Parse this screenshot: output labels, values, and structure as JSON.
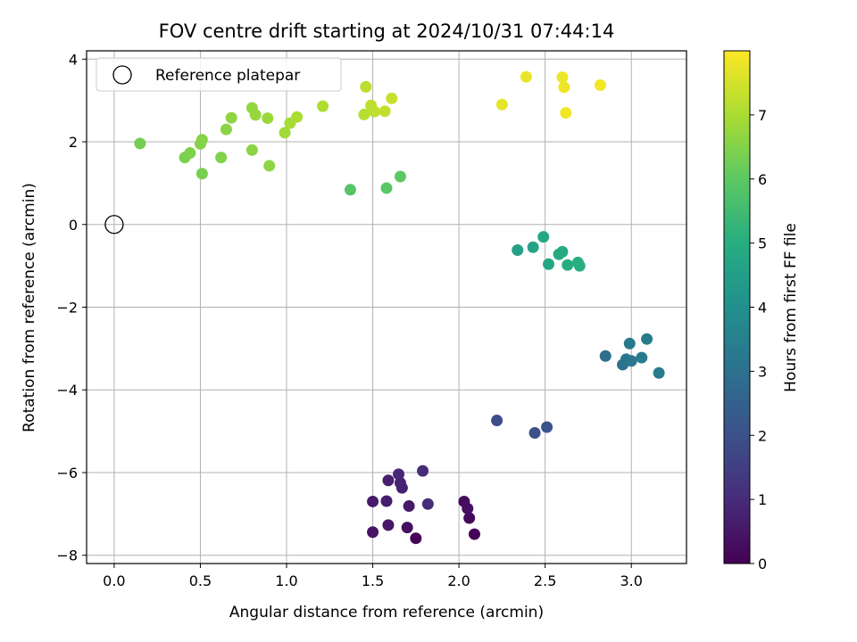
{
  "chart_data": {
    "type": "scatter",
    "title": "FOV centre drift starting at 2024/10/31 07:44:14",
    "xlabel": "Angular distance from reference (arcmin)",
    "ylabel": "Rotation from reference (arcmin)",
    "xlim": [
      -0.16,
      3.32
    ],
    "ylim": [
      -8.2,
      4.2
    ],
    "xticks": [
      0.0,
      0.5,
      1.0,
      1.5,
      2.0,
      2.5,
      3.0
    ],
    "xtick_labels": [
      "0.0",
      "0.5",
      "1.0",
      "1.5",
      "2.0",
      "2.5",
      "3.0"
    ],
    "yticks": [
      -8,
      -6,
      -4,
      -2,
      0,
      2,
      4
    ],
    "ytick_labels": [
      "−8",
      "−6",
      "−4",
      "−2",
      "0",
      "2",
      "4"
    ],
    "grid": true,
    "legend": {
      "placement": "top-left",
      "entries": [
        "Reference platepar"
      ]
    },
    "reference_point": {
      "x": 0.0,
      "y": 0.0,
      "label": "Reference platepar"
    },
    "colorbar": {
      "label": "Hours from first FF file",
      "colormap": "viridis",
      "range": [
        0,
        8.0
      ],
      "ticks": [
        0,
        1,
        2,
        3,
        4,
        5,
        6,
        7
      ],
      "tick_labels": [
        "0",
        "1",
        "2",
        "3",
        "4",
        "5",
        "6",
        "7"
      ]
    },
    "points": [
      {
        "x": 2.09,
        "y": -7.49,
        "c": 0.05
      },
      {
        "x": 1.75,
        "y": -7.59,
        "c": 0.1
      },
      {
        "x": 2.06,
        "y": -7.1,
        "c": 0.2
      },
      {
        "x": 2.03,
        "y": -6.7,
        "c": 0.25
      },
      {
        "x": 2.05,
        "y": -6.87,
        "c": 0.3
      },
      {
        "x": 1.7,
        "y": -7.33,
        "c": 0.35
      },
      {
        "x": 1.5,
        "y": -7.44,
        "c": 0.45
      },
      {
        "x": 1.59,
        "y": -7.27,
        "c": 0.5
      },
      {
        "x": 1.71,
        "y": -6.81,
        "c": 0.55
      },
      {
        "x": 1.5,
        "y": -6.7,
        "c": 0.6
      },
      {
        "x": 1.58,
        "y": -6.69,
        "c": 0.65
      },
      {
        "x": 1.59,
        "y": -6.19,
        "c": 0.7
      },
      {
        "x": 1.67,
        "y": -6.37,
        "c": 0.75
      },
      {
        "x": 1.66,
        "y": -6.25,
        "c": 0.8
      },
      {
        "x": 1.65,
        "y": -6.04,
        "c": 0.9
      },
      {
        "x": 1.79,
        "y": -5.96,
        "c": 1.0
      },
      {
        "x": 1.82,
        "y": -6.76,
        "c": 1.05
      },
      {
        "x": 2.22,
        "y": -4.74,
        "c": 1.9
      },
      {
        "x": 2.44,
        "y": -5.04,
        "c": 2.0
      },
      {
        "x": 2.51,
        "y": -4.9,
        "c": 2.1
      },
      {
        "x": 2.85,
        "y": -3.18,
        "c": 2.9
      },
      {
        "x": 2.95,
        "y": -3.39,
        "c": 3.0
      },
      {
        "x": 2.97,
        "y": -3.26,
        "c": 3.1
      },
      {
        "x": 3.0,
        "y": -3.3,
        "c": 3.2
      },
      {
        "x": 2.99,
        "y": -2.88,
        "c": 3.25
      },
      {
        "x": 3.06,
        "y": -3.22,
        "c": 3.3
      },
      {
        "x": 3.09,
        "y": -2.77,
        "c": 3.35
      },
      {
        "x": 3.16,
        "y": -3.59,
        "c": 3.4
      },
      {
        "x": 2.34,
        "y": -0.62,
        "c": 4.6
      },
      {
        "x": 2.43,
        "y": -0.55,
        "c": 4.7
      },
      {
        "x": 2.49,
        "y": -0.3,
        "c": 4.75
      },
      {
        "x": 2.52,
        "y": -0.96,
        "c": 4.8
      },
      {
        "x": 2.58,
        "y": -0.72,
        "c": 4.85
      },
      {
        "x": 2.6,
        "y": -0.66,
        "c": 4.9
      },
      {
        "x": 2.63,
        "y": -0.98,
        "c": 4.95
      },
      {
        "x": 2.69,
        "y": -0.92,
        "c": 5.0
      },
      {
        "x": 2.7,
        "y": -1.0,
        "c": 5.05
      },
      {
        "x": 1.37,
        "y": 0.84,
        "c": 5.9
      },
      {
        "x": 1.58,
        "y": 0.88,
        "c": 5.95
      },
      {
        "x": 1.66,
        "y": 1.16,
        "c": 6.0
      },
      {
        "x": 0.15,
        "y": 1.96,
        "c": 6.3
      },
      {
        "x": 0.51,
        "y": 1.23,
        "c": 6.35
      },
      {
        "x": 0.41,
        "y": 1.62,
        "c": 6.4
      },
      {
        "x": 0.44,
        "y": 1.73,
        "c": 6.45
      },
      {
        "x": 0.5,
        "y": 1.95,
        "c": 6.5
      },
      {
        "x": 0.51,
        "y": 2.05,
        "c": 6.55
      },
      {
        "x": 0.62,
        "y": 1.62,
        "c": 6.5
      },
      {
        "x": 0.65,
        "y": 2.3,
        "c": 6.6
      },
      {
        "x": 0.68,
        "y": 2.58,
        "c": 6.65
      },
      {
        "x": 0.8,
        "y": 1.8,
        "c": 6.6
      },
      {
        "x": 0.8,
        "y": 2.82,
        "c": 6.7
      },
      {
        "x": 0.82,
        "y": 2.65,
        "c": 6.75
      },
      {
        "x": 0.89,
        "y": 2.57,
        "c": 6.8
      },
      {
        "x": 0.9,
        "y": 1.42,
        "c": 6.65
      },
      {
        "x": 0.99,
        "y": 2.22,
        "c": 6.9
      },
      {
        "x": 1.02,
        "y": 2.45,
        "c": 6.95
      },
      {
        "x": 1.06,
        "y": 2.6,
        "c": 7.0
      },
      {
        "x": 1.21,
        "y": 2.86,
        "c": 7.05
      },
      {
        "x": 1.45,
        "y": 2.66,
        "c": 7.15
      },
      {
        "x": 1.46,
        "y": 3.33,
        "c": 7.2
      },
      {
        "x": 1.49,
        "y": 2.88,
        "c": 7.2
      },
      {
        "x": 1.51,
        "y": 2.73,
        "c": 7.25
      },
      {
        "x": 1.57,
        "y": 2.74,
        "c": 7.3
      },
      {
        "x": 1.61,
        "y": 3.05,
        "c": 7.35
      },
      {
        "x": 2.25,
        "y": 2.9,
        "c": 7.7
      },
      {
        "x": 2.39,
        "y": 3.57,
        "c": 7.75
      },
      {
        "x": 2.6,
        "y": 3.56,
        "c": 7.8
      },
      {
        "x": 2.61,
        "y": 3.32,
        "c": 7.82
      },
      {
        "x": 2.62,
        "y": 2.7,
        "c": 7.85
      },
      {
        "x": 2.82,
        "y": 3.37,
        "c": 7.9
      }
    ]
  }
}
